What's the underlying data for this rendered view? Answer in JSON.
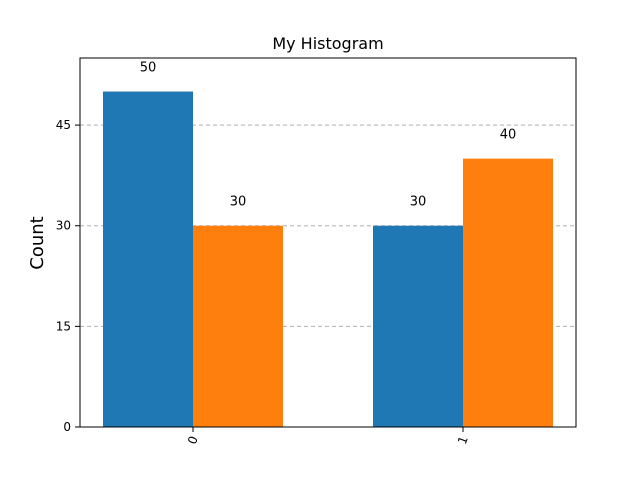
{
  "chart_data": {
    "type": "bar",
    "title": "My Histogram",
    "xlabel": "",
    "ylabel": "Count",
    "categories": [
      "0",
      "1"
    ],
    "series": [
      {
        "values": [
          50,
          30
        ],
        "color": "#1f77b4"
      },
      {
        "values": [
          30,
          40
        ],
        "color": "#ff7f0e"
      }
    ],
    "data_labels": [
      [
        "50",
        "30"
      ],
      [
        "30",
        "40"
      ]
    ],
    "yticks": [
      0,
      15,
      30,
      45
    ],
    "ytick_labels": [
      "0",
      "15",
      "30",
      "45"
    ],
    "ylim": [
      0,
      55
    ],
    "grid": "y-dashed",
    "legend": "none"
  }
}
